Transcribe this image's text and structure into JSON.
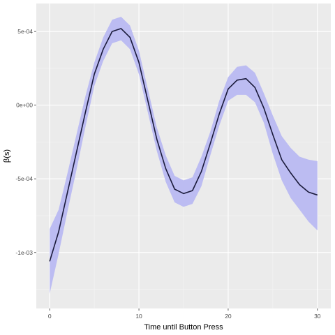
{
  "chart_data": {
    "type": "line",
    "title": "",
    "xlabel": "Time until Button Press",
    "ylabel": "β(s)",
    "xlim": [
      -1.5,
      31.5
    ],
    "ylim": [
      -0.00138,
      0.00069
    ],
    "x_ticks": [
      0,
      10,
      20,
      30
    ],
    "x_tick_labels": [
      "0",
      "10",
      "20",
      "30"
    ],
    "x_minor_ticks": [
      5,
      15,
      25
    ],
    "y_ticks": [
      -0.001,
      -0.0005,
      0,
      0.0005
    ],
    "y_tick_labels": [
      "-1e-03",
      "-5e-04",
      "0e+00",
      "5e-04"
    ],
    "y_minor_ticks": [
      -0.00125,
      -0.00075,
      -0.00025,
      0.00025
    ],
    "grid": true,
    "legend": "none",
    "colors": {
      "panel_background": "#ebebeb",
      "grid_major": "#ffffff",
      "grid_minor": "#f5f5f5",
      "line": "#1a1a3a",
      "ribbon": "#bcbcf2",
      "tick_text": "#4d4d4d",
      "axis_title": "#000000"
    },
    "series": [
      {
        "x": [
          0,
          1,
          2,
          3,
          4,
          5,
          6,
          7,
          8,
          9,
          10,
          11,
          12,
          13,
          14,
          15,
          16,
          17,
          18,
          19,
          20,
          21,
          22,
          23,
          24,
          25,
          26,
          27,
          28,
          29,
          30
        ],
        "y": [
          -0.00106,
          -0.00086,
          -0.00059,
          -0.00032,
          -5e-05,
          0.00021,
          0.00038,
          0.0005,
          0.00052,
          0.00046,
          0.00029,
          3e-05,
          -0.00023,
          -0.00043,
          -0.00057,
          -0.0006,
          -0.00058,
          -0.00045,
          -0.00026,
          -6e-05,
          0.00011,
          0.00017,
          0.00018,
          0.00012,
          -2e-05,
          -0.0002,
          -0.00037,
          -0.00046,
          -0.00054,
          -0.00059,
          -0.00061
        ],
        "lower": [
          -0.00128,
          -0.00101,
          -0.00072,
          -0.00044,
          -0.00015,
          0.00013,
          0.0003,
          0.00042,
          0.00044,
          0.00038,
          0.00021,
          -5e-05,
          -0.00031,
          -0.00052,
          -0.00066,
          -0.00069,
          -0.00067,
          -0.00055,
          -0.00034,
          -0.00014,
          3e-05,
          7e-05,
          7e-05,
          2e-05,
          -0.00012,
          -0.00033,
          -0.00051,
          -0.00063,
          -0.00071,
          -0.00079,
          -0.00085
        ],
        "upper": [
          -0.00084,
          -0.00071,
          -0.00046,
          -0.0002,
          6e-05,
          0.00029,
          0.00046,
          0.00058,
          0.0006,
          0.00054,
          0.00037,
          0.00011,
          -0.00015,
          -0.00034,
          -0.00048,
          -0.00051,
          -0.00049,
          -0.00035,
          -0.00018,
          3e-05,
          0.00019,
          0.00026,
          0.00027,
          0.00022,
          8e-05,
          -7e-05,
          -0.00021,
          -0.00029,
          -0.00035,
          -0.00037,
          -0.00038
        ]
      }
    ]
  }
}
